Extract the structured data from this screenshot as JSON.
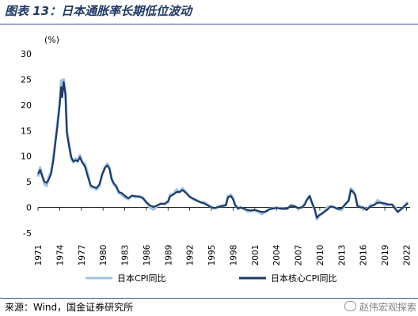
{
  "figure": {
    "title": "图表 13：日本通胀率长期低位波动",
    "source": "来源：Wind，国金证券研究所",
    "watermark": "赵伟宏观探索"
  },
  "chart_data": {
    "type": "line",
    "title": "",
    "xlabel": "",
    "ylabel": "(%)",
    "xlim": [
      1971,
      2022.5
    ],
    "ylim": [
      -5,
      30
    ],
    "y_ticks": [
      -5,
      0,
      5,
      10,
      15,
      20,
      25,
      30
    ],
    "x_ticks": [
      "1971",
      "1974",
      "1977",
      "1980",
      "1983",
      "1986",
      "1989",
      "1992",
      "1995",
      "1998",
      "2001",
      "2004",
      "2007",
      "2010",
      "2013",
      "2016",
      "2019",
      "2022"
    ],
    "grid": false,
    "legend_position": "bottom",
    "series": [
      {
        "name": "日本CPI同比",
        "color": "#9dc3e6",
        "points": [
          [
            1971.0,
            6.0
          ],
          [
            1971.3,
            7.8
          ],
          [
            1971.6,
            6.3
          ],
          [
            1971.9,
            4.5
          ],
          [
            1972.2,
            4.2
          ],
          [
            1972.5,
            6.0
          ],
          [
            1972.8,
            6.8
          ],
          [
            1973.1,
            9.5
          ],
          [
            1973.4,
            13.0
          ],
          [
            1973.7,
            16.5
          ],
          [
            1974.0,
            20.5
          ],
          [
            1974.2,
            24.8
          ],
          [
            1974.35,
            22.0
          ],
          [
            1974.55,
            25.0
          ],
          [
            1974.8,
            22.5
          ],
          [
            1975.0,
            15.0
          ],
          [
            1975.3,
            12.5
          ],
          [
            1975.6,
            9.5
          ],
          [
            1975.9,
            8.8
          ],
          [
            1976.2,
            9.5
          ],
          [
            1976.5,
            9.0
          ],
          [
            1976.8,
            10.2
          ],
          [
            1977.1,
            9.0
          ],
          [
            1977.5,
            8.5
          ],
          [
            1977.9,
            6.5
          ],
          [
            1978.3,
            4.0
          ],
          [
            1978.7,
            3.8
          ],
          [
            1979.1,
            3.5
          ],
          [
            1979.5,
            4.2
          ],
          [
            1979.9,
            6.5
          ],
          [
            1980.3,
            8.0
          ],
          [
            1980.6,
            8.5
          ],
          [
            1980.9,
            7.8
          ],
          [
            1981.2,
            5.5
          ],
          [
            1981.5,
            4.5
          ],
          [
            1981.8,
            4.0
          ],
          [
            1982.2,
            2.8
          ],
          [
            1982.6,
            2.5
          ],
          [
            1983.0,
            2.0
          ],
          [
            1983.5,
            1.6
          ],
          [
            1984.0,
            2.3
          ],
          [
            1984.5,
            2.0
          ],
          [
            1985.0,
            2.2
          ],
          [
            1985.5,
            2.0
          ],
          [
            1986.0,
            1.0
          ],
          [
            1986.5,
            0.0
          ],
          [
            1987.0,
            -0.4
          ],
          [
            1987.5,
            0.3
          ],
          [
            1988.0,
            0.8
          ],
          [
            1988.5,
            0.6
          ],
          [
            1989.0,
            1.0
          ],
          [
            1989.3,
            2.5
          ],
          [
            1989.7,
            2.6
          ],
          [
            1990.2,
            3.5
          ],
          [
            1990.6,
            3.0
          ],
          [
            1991.0,
            3.7
          ],
          [
            1991.5,
            3.0
          ],
          [
            1992.0,
            2.0
          ],
          [
            1992.5,
            1.6
          ],
          [
            1993.0,
            1.4
          ],
          [
            1993.5,
            1.0
          ],
          [
            1994.0,
            1.0
          ],
          [
            1994.5,
            0.5
          ],
          [
            1995.0,
            0.0
          ],
          [
            1995.5,
            -0.2
          ],
          [
            1996.0,
            0.2
          ],
          [
            1996.5,
            0.3
          ],
          [
            1997.0,
            0.5
          ],
          [
            1997.3,
            2.2
          ],
          [
            1997.7,
            2.5
          ],
          [
            1998.0,
            1.8
          ],
          [
            1998.3,
            0.5
          ],
          [
            1998.7,
            -0.3
          ],
          [
            1999.0,
            0.0
          ],
          [
            1999.5,
            -0.3
          ],
          [
            2000.0,
            -0.8
          ],
          [
            2000.5,
            -0.7
          ],
          [
            2001.0,
            -0.5
          ],
          [
            2001.5,
            -0.8
          ],
          [
            2002.0,
            -1.3
          ],
          [
            2002.5,
            -0.8
          ],
          [
            2003.0,
            -0.3
          ],
          [
            2003.5,
            -0.2
          ],
          [
            2004.0,
            0.0
          ],
          [
            2004.5,
            -0.2
          ],
          [
            2005.0,
            -0.2
          ],
          [
            2005.5,
            -0.3
          ],
          [
            2006.0,
            0.5
          ],
          [
            2006.5,
            0.3
          ],
          [
            2007.0,
            -0.2
          ],
          [
            2007.5,
            0.0
          ],
          [
            2007.9,
            0.7
          ],
          [
            2008.2,
            1.5
          ],
          [
            2008.6,
            2.3
          ],
          [
            2008.9,
            1.0
          ],
          [
            2009.3,
            -0.5
          ],
          [
            2009.6,
            -2.3
          ],
          [
            2009.9,
            -1.7
          ],
          [
            2010.3,
            -1.2
          ],
          [
            2010.7,
            -0.6
          ],
          [
            2011.0,
            0.0
          ],
          [
            2011.5,
            0.2
          ],
          [
            2012.0,
            0.1
          ],
          [
            2012.5,
            -0.3
          ],
          [
            2013.0,
            -0.5
          ],
          [
            2013.5,
            0.5
          ],
          [
            2014.0,
            1.4
          ],
          [
            2014.3,
            3.7
          ],
          [
            2014.6,
            3.3
          ],
          [
            2014.9,
            2.4
          ],
          [
            2015.2,
            0.5
          ],
          [
            2015.6,
            0.2
          ],
          [
            2016.0,
            0.0
          ],
          [
            2016.5,
            -0.4
          ],
          [
            2017.0,
            0.4
          ],
          [
            2017.5,
            0.4
          ],
          [
            2018.0,
            1.4
          ],
          [
            2018.5,
            0.9
          ],
          [
            2019.0,
            0.4
          ],
          [
            2019.5,
            0.5
          ],
          [
            2020.0,
            0.5
          ],
          [
            2020.4,
            0.1
          ],
          [
            2020.8,
            -0.8
          ],
          [
            2021.2,
            -0.4
          ],
          [
            2021.6,
            0.0
          ],
          [
            2022.0,
            0.8
          ],
          [
            2022.2,
            1.0
          ]
        ]
      },
      {
        "name": "日本核心CPI同比",
        "color": "#1f3864",
        "points": [
          [
            1971.0,
            6.5
          ],
          [
            1971.3,
            7.3
          ],
          [
            1971.6,
            6.0
          ],
          [
            1971.9,
            5.0
          ],
          [
            1972.2,
            4.8
          ],
          [
            1972.5,
            5.5
          ],
          [
            1972.8,
            6.5
          ],
          [
            1973.1,
            9.0
          ],
          [
            1973.4,
            12.5
          ],
          [
            1973.7,
            16.0
          ],
          [
            1974.0,
            20.0
          ],
          [
            1974.2,
            23.5
          ],
          [
            1974.35,
            21.5
          ],
          [
            1974.55,
            24.5
          ],
          [
            1974.8,
            22.0
          ],
          [
            1975.0,
            14.5
          ],
          [
            1975.3,
            12.0
          ],
          [
            1975.6,
            9.8
          ],
          [
            1975.9,
            9.0
          ],
          [
            1976.2,
            9.2
          ],
          [
            1976.5,
            9.0
          ],
          [
            1976.8,
            9.8
          ],
          [
            1977.1,
            8.8
          ],
          [
            1977.5,
            8.0
          ],
          [
            1977.9,
            6.0
          ],
          [
            1978.3,
            4.3
          ],
          [
            1978.7,
            4.0
          ],
          [
            1979.1,
            3.8
          ],
          [
            1979.5,
            4.5
          ],
          [
            1979.9,
            6.5
          ],
          [
            1980.3,
            7.8
          ],
          [
            1980.6,
            8.2
          ],
          [
            1980.9,
            7.5
          ],
          [
            1981.2,
            5.5
          ],
          [
            1981.5,
            4.7
          ],
          [
            1981.8,
            4.2
          ],
          [
            1982.2,
            3.0
          ],
          [
            1982.6,
            2.8
          ],
          [
            1983.0,
            2.3
          ],
          [
            1983.5,
            1.8
          ],
          [
            1984.0,
            2.3
          ],
          [
            1984.5,
            2.2
          ],
          [
            1985.0,
            2.1
          ],
          [
            1985.5,
            1.8
          ],
          [
            1986.0,
            1.0
          ],
          [
            1986.5,
            0.4
          ],
          [
            1987.0,
            0.1
          ],
          [
            1987.5,
            0.4
          ],
          [
            1988.0,
            0.7
          ],
          [
            1988.5,
            0.7
          ],
          [
            1989.0,
            1.2
          ],
          [
            1989.3,
            2.2
          ],
          [
            1989.7,
            2.5
          ],
          [
            1990.2,
            3.0
          ],
          [
            1990.6,
            3.0
          ],
          [
            1991.0,
            3.4
          ],
          [
            1991.5,
            2.8
          ],
          [
            1992.0,
            2.1
          ],
          [
            1992.5,
            1.7
          ],
          [
            1993.0,
            1.3
          ],
          [
            1993.5,
            1.0
          ],
          [
            1994.0,
            0.8
          ],
          [
            1994.5,
            0.4
          ],
          [
            1995.0,
            0.0
          ],
          [
            1995.5,
            -0.1
          ],
          [
            1996.0,
            0.1
          ],
          [
            1996.5,
            0.3
          ],
          [
            1997.0,
            0.4
          ],
          [
            1997.3,
            2.0
          ],
          [
            1997.7,
            2.2
          ],
          [
            1998.0,
            1.6
          ],
          [
            1998.3,
            0.4
          ],
          [
            1998.7,
            -0.2
          ],
          [
            1999.0,
            0.0
          ],
          [
            1999.5,
            -0.2
          ],
          [
            2000.0,
            -0.5
          ],
          [
            2000.5,
            -0.6
          ],
          [
            2001.0,
            -0.5
          ],
          [
            2001.5,
            -0.7
          ],
          [
            2002.0,
            -0.9
          ],
          [
            2002.5,
            -0.8
          ],
          [
            2003.0,
            -0.4
          ],
          [
            2003.5,
            -0.2
          ],
          [
            2004.0,
            -0.1
          ],
          [
            2004.5,
            -0.2
          ],
          [
            2005.0,
            -0.3
          ],
          [
            2005.5,
            -0.2
          ],
          [
            2006.0,
            0.3
          ],
          [
            2006.5,
            0.2
          ],
          [
            2007.0,
            -0.1
          ],
          [
            2007.5,
            0.0
          ],
          [
            2007.9,
            0.5
          ],
          [
            2008.2,
            1.4
          ],
          [
            2008.6,
            2.2
          ],
          [
            2008.9,
            1.0
          ],
          [
            2009.3,
            -0.3
          ],
          [
            2009.6,
            -2.0
          ],
          [
            2009.9,
            -1.5
          ],
          [
            2010.3,
            -1.2
          ],
          [
            2010.7,
            -0.8
          ],
          [
            2011.0,
            -0.5
          ],
          [
            2011.5,
            0.2
          ],
          [
            2012.0,
            0.0
          ],
          [
            2012.5,
            -0.3
          ],
          [
            2013.0,
            -0.2
          ],
          [
            2013.5,
            0.6
          ],
          [
            2014.0,
            1.3
          ],
          [
            2014.3,
            3.4
          ],
          [
            2014.6,
            3.0
          ],
          [
            2014.9,
            2.5
          ],
          [
            2015.2,
            0.3
          ],
          [
            2015.6,
            0.0
          ],
          [
            2016.0,
            0.0
          ],
          [
            2016.5,
            -0.5
          ],
          [
            2017.0,
            0.2
          ],
          [
            2017.5,
            0.5
          ],
          [
            2018.0,
            0.9
          ],
          [
            2018.5,
            0.9
          ],
          [
            2019.0,
            0.8
          ],
          [
            2019.5,
            0.6
          ],
          [
            2020.0,
            0.6
          ],
          [
            2020.4,
            -0.2
          ],
          [
            2020.8,
            -0.9
          ],
          [
            2021.2,
            -0.4
          ],
          [
            2021.6,
            0.1
          ],
          [
            2022.0,
            0.6
          ],
          [
            2022.2,
            0.8
          ]
        ]
      }
    ]
  }
}
